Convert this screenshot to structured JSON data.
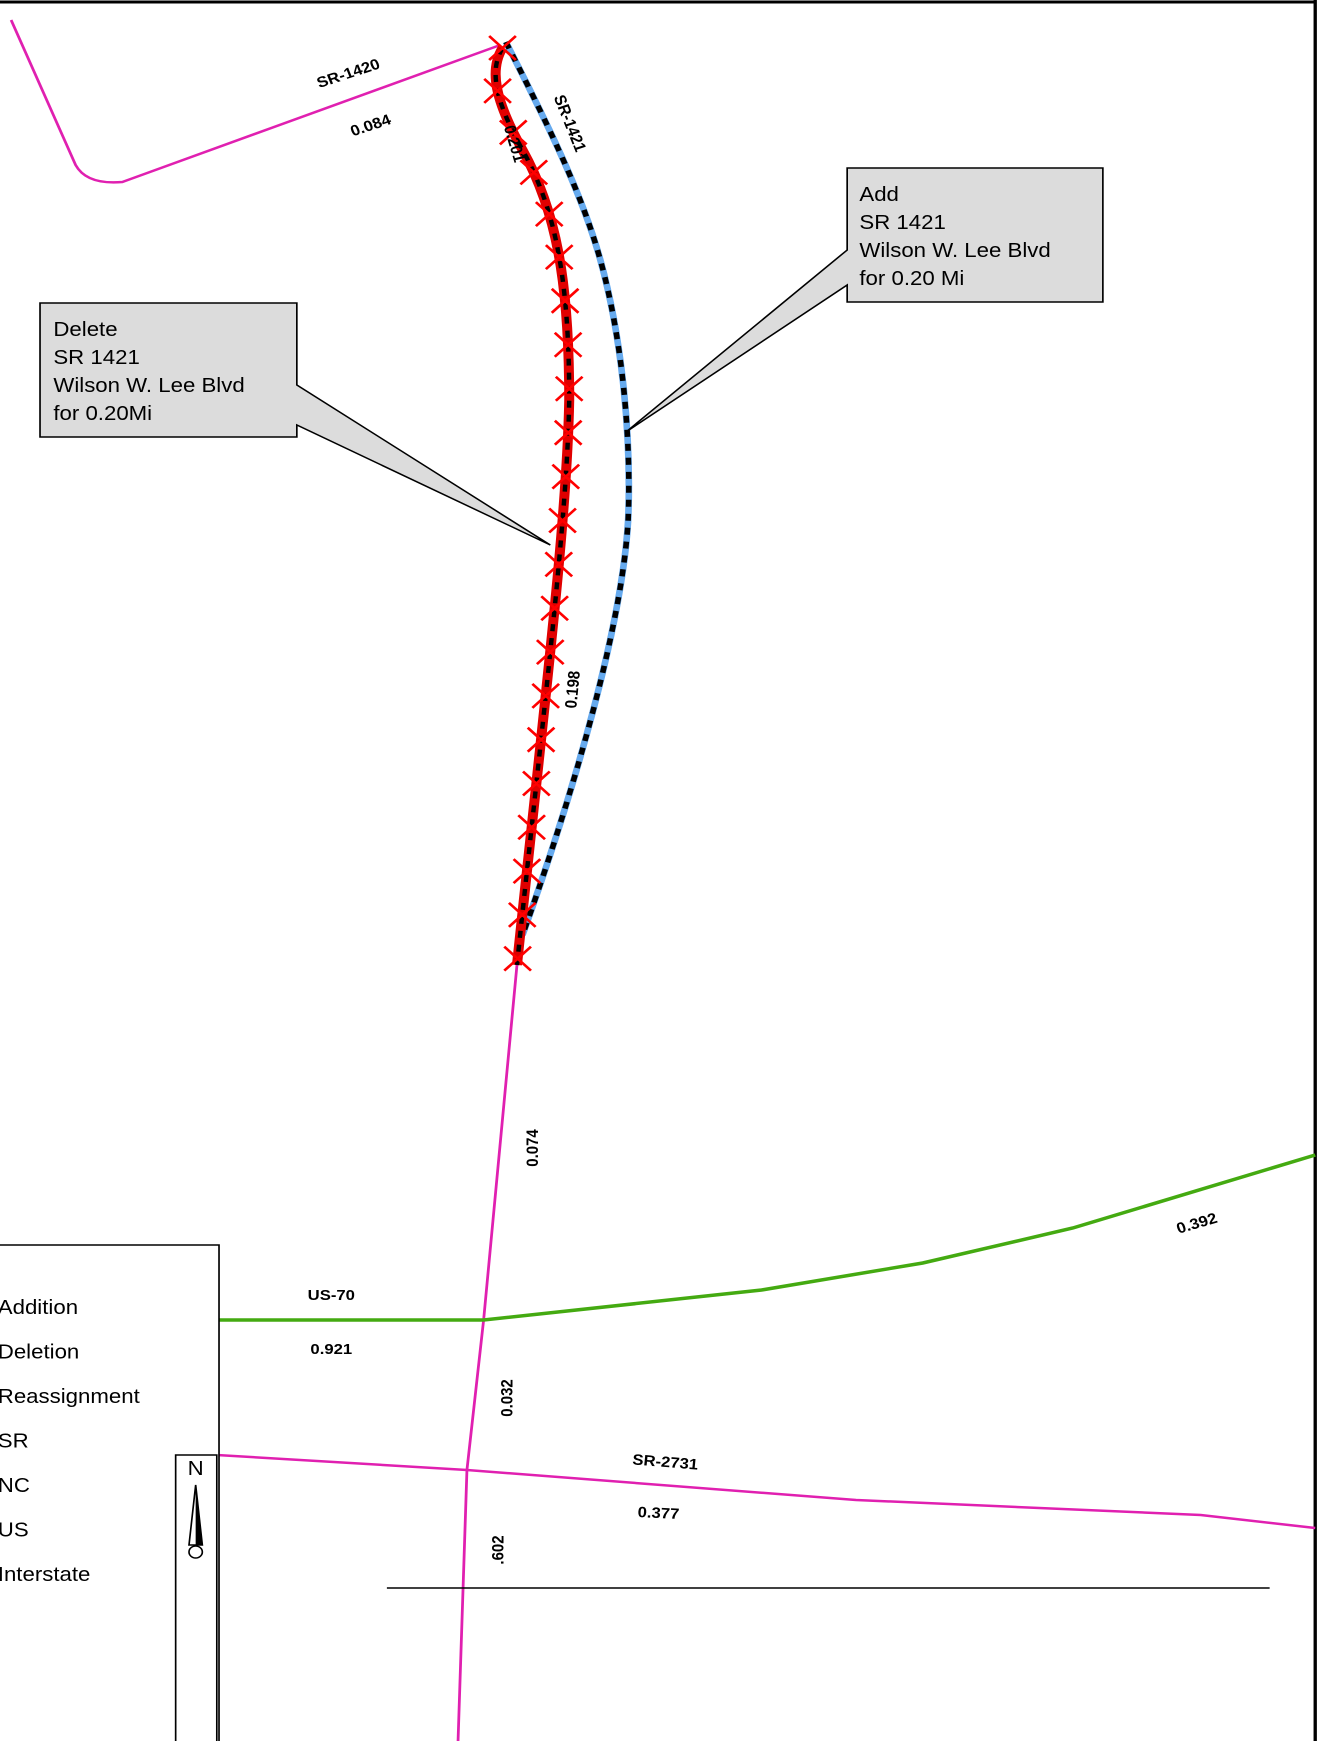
{
  "map_labels": {
    "sr1420": "SR-1420",
    "sr1420_len": "0.084",
    "sr1421": "SR-1421",
    "del_len": "0.201",
    "add_len": "0.198",
    "south_len": "0.074",
    "us70": "US-70",
    "us70_west_len": "0.921",
    "us70_east_len": "0.392",
    "mid_len": "0.032",
    "sr2731": "SR-2731",
    "sr2731_len": "0.377",
    "bottom_len": ".602"
  },
  "callouts": {
    "delete": {
      "lines": [
        "Delete",
        "SR 1421",
        "Wilson W. Lee Blvd",
        "for 0.20Mi"
      ]
    },
    "add": {
      "lines": [
        "Add",
        "SR 1421",
        "Wilson W. Lee Blvd",
        "for 0.20 Mi"
      ]
    }
  },
  "legend": {
    "items": [
      "Addition",
      "Deletion",
      "Reassignment",
      "SR",
      "NC",
      "US",
      "Interstate"
    ]
  },
  "north_arrow": {
    "label": "N"
  }
}
